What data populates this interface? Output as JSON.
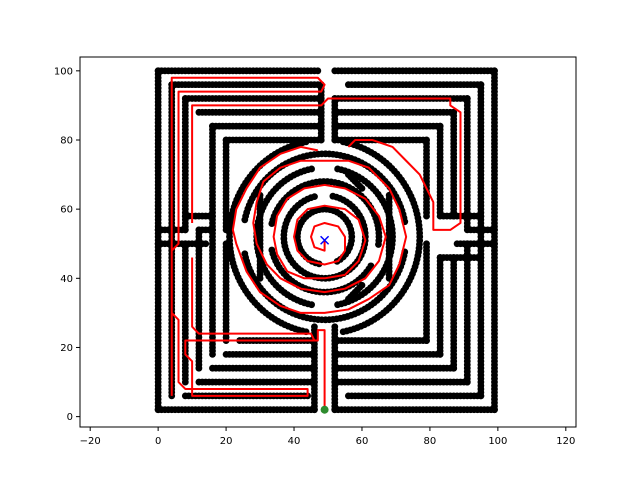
{
  "chart_data": {
    "type": "scatter",
    "title": "",
    "xlabel": "",
    "ylabel": "",
    "xlim": [
      -23,
      123
    ],
    "ylim": [
      -3,
      104
    ],
    "xticks": [
      -20,
      0,
      20,
      40,
      60,
      80,
      100,
      120
    ],
    "yticks": [
      0,
      20,
      40,
      60,
      80,
      100
    ],
    "grid": false,
    "series": [
      {
        "kind": "maze_walls",
        "marker": "circle",
        "color": "#000000",
        "segments": [
          [
            [
              0,
              2
            ],
            [
              0,
              100
            ]
          ],
          [
            [
              0,
              100
            ],
            [
              47,
              100
            ]
          ],
          [
            [
              52,
              100
            ],
            [
              99,
              100
            ]
          ],
          [
            [
              99,
              100
            ],
            [
              99,
              2
            ]
          ],
          [
            [
              99,
              2
            ],
            [
              52,
              2
            ]
          ],
          [
            [
              46,
              2
            ],
            [
              0,
              2
            ]
          ],
          [
            [
              4,
              6
            ],
            [
              4,
              96
            ]
          ],
          [
            [
              4,
              96
            ],
            [
              48,
              96
            ]
          ],
          [
            [
              56,
              96
            ],
            [
              95,
              96
            ]
          ],
          [
            [
              95,
              96
            ],
            [
              95,
              6
            ]
          ],
          [
            [
              95,
              6
            ],
            [
              56,
              6
            ]
          ],
          [
            [
              44,
              6
            ],
            [
              8,
              6
            ]
          ],
          [
            [
              8,
              10
            ],
            [
              8,
              50
            ]
          ],
          [
            [
              8,
              54
            ],
            [
              8,
              92
            ]
          ],
          [
            [
              8,
              92
            ],
            [
              48,
              92
            ]
          ],
          [
            [
              52,
              92
            ],
            [
              91,
              92
            ]
          ],
          [
            [
              91,
              92
            ],
            [
              91,
              54
            ]
          ],
          [
            [
              91,
              50
            ],
            [
              91,
              10
            ]
          ],
          [
            [
              91,
              10
            ],
            [
              52,
              10
            ]
          ],
          [
            [
              46,
              10
            ],
            [
              12,
              10
            ]
          ],
          [
            [
              12,
              14
            ],
            [
              12,
              54
            ]
          ],
          [
            [
              12,
              54
            ],
            [
              16,
              54
            ]
          ],
          [
            [
              12,
              88
            ],
            [
              48,
              88
            ]
          ],
          [
            [
              52,
              88
            ],
            [
              87,
              88
            ]
          ],
          [
            [
              87,
              88
            ],
            [
              87,
              58
            ]
          ],
          [
            [
              87,
              46
            ],
            [
              87,
              14
            ]
          ],
          [
            [
              87,
              14
            ],
            [
              52,
              14
            ]
          ],
          [
            [
              46,
              14
            ],
            [
              16,
              14
            ]
          ],
          [
            [
              16,
              18
            ],
            [
              16,
              84
            ]
          ],
          [
            [
              16,
              84
            ],
            [
              48,
              84
            ]
          ],
          [
            [
              52,
              84
            ],
            [
              83,
              84
            ]
          ],
          [
            [
              83,
              84
            ],
            [
              83,
              58
            ]
          ],
          [
            [
              83,
              46
            ],
            [
              83,
              18
            ]
          ],
          [
            [
              83,
              18
            ],
            [
              52,
              18
            ]
          ],
          [
            [
              46,
              18
            ],
            [
              20,
              18
            ]
          ],
          [
            [
              20,
              22
            ],
            [
              20,
              50
            ]
          ],
          [
            [
              20,
              54
            ],
            [
              20,
              80
            ]
          ],
          [
            [
              20,
              80
            ],
            [
              48,
              80
            ]
          ],
          [
            [
              52,
              80
            ],
            [
              79,
              80
            ]
          ],
          [
            [
              79,
              80
            ],
            [
              79,
              58
            ]
          ],
          [
            [
              79,
              50
            ],
            [
              79,
              22
            ]
          ],
          [
            [
              79,
              22
            ],
            [
              52,
              22
            ]
          ],
          [
            [
              46,
              22
            ],
            [
              24,
              22
            ]
          ],
          [
            [
              0,
              50
            ],
            [
              14,
              50
            ]
          ],
          [
            [
              0,
              54
            ],
            [
              8,
              54
            ]
          ],
          [
            [
              88,
              50
            ],
            [
              99,
              50
            ]
          ],
          [
            [
              92,
              54
            ],
            [
              99,
              54
            ]
          ],
          [
            [
              8,
              58
            ],
            [
              16,
              58
            ]
          ],
          [
            [
              83,
              46
            ],
            [
              95,
              46
            ]
          ],
          [
            [
              84,
              58
            ],
            [
              95,
              58
            ]
          ],
          [
            [
              46,
              2
            ],
            [
              46,
              26
            ]
          ],
          [
            [
              52,
              2
            ],
            [
              52,
              26
            ]
          ],
          [
            [
              48,
              80
            ],
            [
              48,
              96
            ]
          ],
          [
            [
              52,
              80
            ],
            [
              52,
              92
            ]
          ],
          [
            [
              30,
              40
            ],
            [
              30,
              64
            ]
          ],
          [
            [
              68,
              40
            ],
            [
              68,
              64
            ]
          ],
          [
            [
              56,
              34
            ],
            [
              60,
              38
            ]
          ],
          [
            [
              56,
              70
            ],
            [
              60,
              66
            ]
          ]
        ]
      },
      {
        "kind": "ring_walls",
        "marker": "circle",
        "color": "#000000",
        "center": [
          49,
          52
        ],
        "rings": [
          {
            "radius": 28,
            "gaps": [
              [
                80,
                100
              ],
              [
                260,
                280
              ]
            ]
          },
          {
            "radius": 24,
            "gaps": [
              [
                170,
                190
              ],
              [
                -10,
                10
              ]
            ]
          },
          {
            "radius": 20,
            "gaps": [
              [
                80,
                100
              ],
              [
                260,
                280
              ]
            ]
          },
          {
            "radius": 16,
            "gaps": [
              [
                -30,
                -10
              ],
              [
                170,
                190
              ]
            ]
          },
          {
            "radius": 12,
            "gaps": [
              [
                80,
                100
              ]
            ]
          },
          {
            "radius": 8,
            "gaps": [
              [
                260,
                290
              ]
            ]
          }
        ]
      },
      {
        "kind": "path",
        "marker": "line",
        "color": "#ff0000",
        "points": [
          [
            49,
            2
          ],
          [
            49,
            25
          ],
          [
            47,
            25
          ],
          [
            47,
            22
          ],
          [
            8,
            22
          ],
          [
            8,
            18
          ],
          [
            10,
            16
          ],
          [
            10,
            6
          ],
          [
            44,
            6
          ],
          [
            44,
            8
          ],
          [
            8,
            8
          ],
          [
            6,
            10
          ],
          [
            6,
            28
          ],
          [
            4,
            30
          ],
          [
            4,
            48
          ],
          [
            6,
            50
          ],
          [
            6,
            94
          ],
          [
            48,
            94
          ],
          [
            49,
            96
          ],
          [
            47,
            98
          ],
          [
            4,
            98
          ],
          [
            4,
            6
          ]
        ]
      },
      {
        "kind": "path",
        "marker": "line",
        "color": "#ff0000",
        "points": [
          [
            10,
            56
          ],
          [
            10,
            90
          ],
          [
            48,
            90
          ],
          [
            50,
            92
          ],
          [
            86,
            92
          ],
          [
            86,
            90
          ],
          [
            89,
            88
          ],
          [
            89,
            56
          ],
          [
            86,
            54
          ],
          [
            81,
            54
          ],
          [
            81,
            62
          ],
          [
            77,
            70
          ],
          [
            73,
            74
          ],
          [
            69,
            78
          ],
          [
            63,
            80
          ],
          [
            58,
            80
          ],
          [
            56,
            78
          ]
        ]
      },
      {
        "kind": "path",
        "marker": "line",
        "color": "#ff0000",
        "points": [
          [
            10,
            46
          ],
          [
            10,
            26
          ],
          [
            12,
            24
          ],
          [
            45,
            24
          ],
          [
            46,
            22
          ]
        ]
      },
      {
        "kind": "path",
        "marker": "line",
        "color": "#ff0000",
        "points": [
          [
            47,
            77
          ],
          [
            42,
            78
          ],
          [
            36,
            76
          ],
          [
            30,
            72
          ],
          [
            26,
            66
          ],
          [
            23,
            60
          ],
          [
            22,
            54
          ],
          [
            23,
            50
          ],
          [
            26,
            42
          ],
          [
            30,
            36
          ],
          [
            36,
            32
          ],
          [
            42,
            30
          ],
          [
            49,
            30
          ],
          [
            56,
            31
          ],
          [
            62,
            34
          ],
          [
            68,
            38
          ],
          [
            71,
            44
          ],
          [
            73,
            52
          ],
          [
            71,
            60
          ],
          [
            68,
            66
          ],
          [
            62,
            72
          ],
          [
            56,
            74
          ],
          [
            49,
            74
          ],
          [
            42,
            74
          ],
          [
            36,
            72
          ],
          [
            31,
            68
          ],
          [
            29,
            62
          ],
          [
            28,
            56
          ],
          [
            29,
            50
          ],
          [
            32,
            44
          ],
          [
            36,
            40
          ],
          [
            42,
            37
          ],
          [
            49,
            36
          ],
          [
            55,
            37
          ],
          [
            61,
            40
          ],
          [
            65,
            45
          ],
          [
            67,
            52
          ],
          [
            65,
            58
          ],
          [
            61,
            63
          ],
          [
            55,
            66
          ],
          [
            49,
            67
          ],
          [
            43,
            66
          ],
          [
            38,
            63
          ],
          [
            35,
            58
          ],
          [
            34,
            52
          ],
          [
            35,
            47
          ],
          [
            38,
            42
          ],
          [
            43,
            40
          ],
          [
            49,
            40
          ],
          [
            55,
            41
          ],
          [
            59,
            45
          ],
          [
            61,
            51
          ],
          [
            59,
            57
          ],
          [
            55,
            60
          ],
          [
            49,
            61
          ],
          [
            44,
            60
          ],
          [
            41,
            57
          ],
          [
            40,
            52
          ],
          [
            41,
            48
          ],
          [
            44,
            45
          ],
          [
            49,
            44
          ],
          [
            53,
            45
          ],
          [
            55,
            48
          ],
          [
            55,
            52
          ],
          [
            53,
            55
          ],
          [
            49,
            56
          ],
          [
            46,
            55
          ],
          [
            45,
            52
          ],
          [
            46,
            49
          ],
          [
            49,
            48
          ],
          [
            49,
            51
          ]
        ]
      },
      {
        "kind": "start",
        "marker": "circle",
        "color": "#2e8b2e",
        "points": [
          [
            49,
            2
          ]
        ]
      },
      {
        "kind": "goal",
        "marker": "x",
        "color": "#0000ff",
        "points": [
          [
            49,
            51
          ]
        ]
      }
    ]
  }
}
